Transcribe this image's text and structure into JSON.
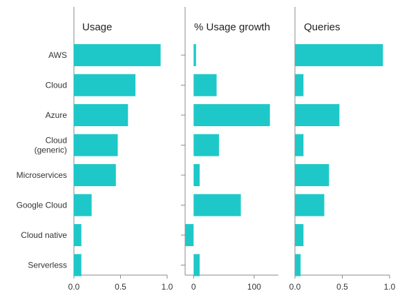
{
  "chart_data": {
    "type": "bar",
    "orientation": "horizontal",
    "categories": [
      "AWS",
      "Cloud",
      "Azure",
      "Cloud\n(generic)",
      "Microservices",
      "Google Cloud",
      "Cloud native",
      "Serverless"
    ],
    "bar_color": "#1fc8c8",
    "grid": false,
    "panels": [
      {
        "title": "Usage",
        "xlim": [
          0.0,
          1.0
        ],
        "ticks": [
          0.0,
          0.5,
          1.0
        ],
        "tick_labels": [
          "0.0",
          "0.5",
          "1.0"
        ],
        "values": [
          0.93,
          0.66,
          0.58,
          0.47,
          0.45,
          0.19,
          0.08,
          0.08
        ]
      },
      {
        "title": "% Usage growth",
        "xlim": [
          -14,
          140
        ],
        "ticks": [
          0,
          100
        ],
        "tick_labels": [
          "0",
          "100"
        ],
        "values": [
          4,
          38,
          126,
          42,
          10,
          78,
          -14,
          10
        ]
      },
      {
        "title": "Queries",
        "xlim": [
          0.0,
          1.0
        ],
        "ticks": [
          0.0,
          0.5,
          1.0
        ],
        "tick_labels": [
          "0.0",
          "0.5",
          "1.0"
        ],
        "values": [
          0.93,
          0.09,
          0.47,
          0.09,
          0.36,
          0.31,
          0.09,
          0.06
        ]
      }
    ]
  }
}
